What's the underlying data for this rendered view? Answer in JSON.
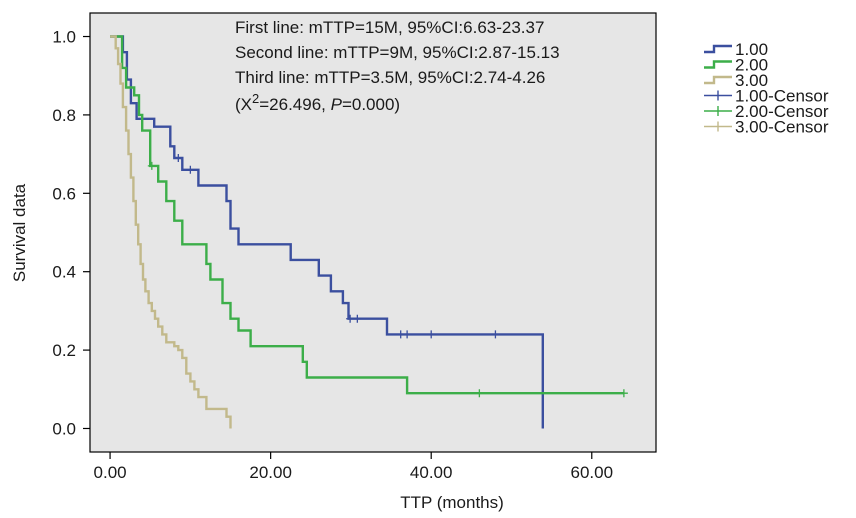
{
  "chart_data": {
    "type": "line",
    "subtype": "kaplan-meier",
    "title": "",
    "xlabel": "TTP (months)",
    "ylabel": "Survival data",
    "xlim": [
      -2.5,
      68
    ],
    "ylim": [
      -0.06,
      1.06
    ],
    "xticks": [
      0,
      20,
      40,
      60
    ],
    "xtick_labels": [
      "0.00",
      "20.00",
      "40.00",
      "60.00"
    ],
    "yticks": [
      0,
      0.2,
      0.4,
      0.6,
      0.8,
      1.0
    ],
    "ytick_labels": [
      "0.0",
      "0.2",
      "0.4",
      "0.6",
      "0.8",
      "1.0"
    ],
    "grid": false,
    "background": "#e6e6e6",
    "legend_position": "right",
    "annotations": {
      "line1": "First line: mTTP=15M, 95%CI:6.63-23.37",
      "line2": "Second line: mTTP=9M, 95%CI:2.87-15.13",
      "line3": "Third line: mTTP=3.5M, 95%CI:2.74-4.26",
      "stat_open": "(X",
      "stat_sup": "2",
      "stat_mid": "=26.496, ",
      "stat_p": "P",
      "stat_close": "=0.000)"
    },
    "series": [
      {
        "name": "1.00",
        "censor_name": "1.00-Censor",
        "color": "#3b4f9f",
        "steps": [
          [
            0,
            1.0
          ],
          [
            1.2,
            1.0
          ],
          [
            1.6,
            0.96
          ],
          [
            2.1,
            0.89
          ],
          [
            2.6,
            0.83
          ],
          [
            3.3,
            0.79
          ],
          [
            5.5,
            0.77
          ],
          [
            7.5,
            0.72
          ],
          [
            8.0,
            0.69
          ],
          [
            9.0,
            0.66
          ],
          [
            11.0,
            0.62
          ],
          [
            14.5,
            0.58
          ],
          [
            15.0,
            0.51
          ],
          [
            16.0,
            0.47
          ],
          [
            22.5,
            0.43
          ],
          [
            26.0,
            0.39
          ],
          [
            27.5,
            0.35
          ],
          [
            29.0,
            0.32
          ],
          [
            29.7,
            0.28
          ],
          [
            34.5,
            0.24
          ],
          [
            53.5,
            0.24
          ],
          [
            53.9,
            0.0
          ]
        ],
        "censors": [
          [
            8.5,
            0.69
          ],
          [
            10.0,
            0.66
          ],
          [
            29.9,
            0.28
          ],
          [
            30.8,
            0.28
          ],
          [
            36.2,
            0.24
          ],
          [
            37.0,
            0.24
          ],
          [
            40.0,
            0.24
          ],
          [
            48.0,
            0.24
          ]
        ]
      },
      {
        "name": "2.00",
        "censor_name": "2.00-Censor",
        "color": "#3cae49",
        "steps": [
          [
            0,
            1.0
          ],
          [
            1.3,
            1.0
          ],
          [
            1.5,
            0.92
          ],
          [
            2.0,
            0.87
          ],
          [
            3.0,
            0.85
          ],
          [
            3.6,
            0.8
          ],
          [
            4.0,
            0.76
          ],
          [
            5.0,
            0.67
          ],
          [
            6.0,
            0.63
          ],
          [
            7.0,
            0.58
          ],
          [
            8.0,
            0.53
          ],
          [
            9.0,
            0.47
          ],
          [
            12.0,
            0.42
          ],
          [
            12.5,
            0.38
          ],
          [
            14.0,
            0.32
          ],
          [
            15.0,
            0.28
          ],
          [
            16.0,
            0.25
          ],
          [
            17.5,
            0.21
          ],
          [
            24.0,
            0.17
          ],
          [
            24.5,
            0.13
          ],
          [
            37.0,
            0.09
          ],
          [
            64.0,
            0.09
          ]
        ],
        "censors": [
          [
            5.2,
            0.67
          ],
          [
            46.0,
            0.09
          ],
          [
            64.0,
            0.09
          ]
        ]
      },
      {
        "name": "3.00",
        "censor_name": "3.00-Censor",
        "color": "#c2b98b",
        "steps": [
          [
            0,
            1.0
          ],
          [
            0.5,
            1.0
          ],
          [
            0.7,
            0.97
          ],
          [
            1.0,
            0.93
          ],
          [
            1.3,
            0.88
          ],
          [
            1.6,
            0.82
          ],
          [
            2.0,
            0.76
          ],
          [
            2.3,
            0.7
          ],
          [
            2.6,
            0.64
          ],
          [
            2.9,
            0.58
          ],
          [
            3.2,
            0.52
          ],
          [
            3.5,
            0.47
          ],
          [
            3.8,
            0.42
          ],
          [
            4.1,
            0.38
          ],
          [
            4.4,
            0.35
          ],
          [
            4.8,
            0.32
          ],
          [
            5.2,
            0.3
          ],
          [
            5.6,
            0.28
          ],
          [
            6.0,
            0.26
          ],
          [
            6.5,
            0.24
          ],
          [
            7.0,
            0.22
          ],
          [
            8.0,
            0.21
          ],
          [
            8.5,
            0.2
          ],
          [
            9.0,
            0.18
          ],
          [
            9.5,
            0.14
          ],
          [
            10.0,
            0.12
          ],
          [
            10.5,
            0.1
          ],
          [
            11.0,
            0.08
          ],
          [
            12.0,
            0.05
          ],
          [
            14.5,
            0.03
          ],
          [
            15.0,
            0.0
          ]
        ],
        "censors": []
      }
    ]
  }
}
